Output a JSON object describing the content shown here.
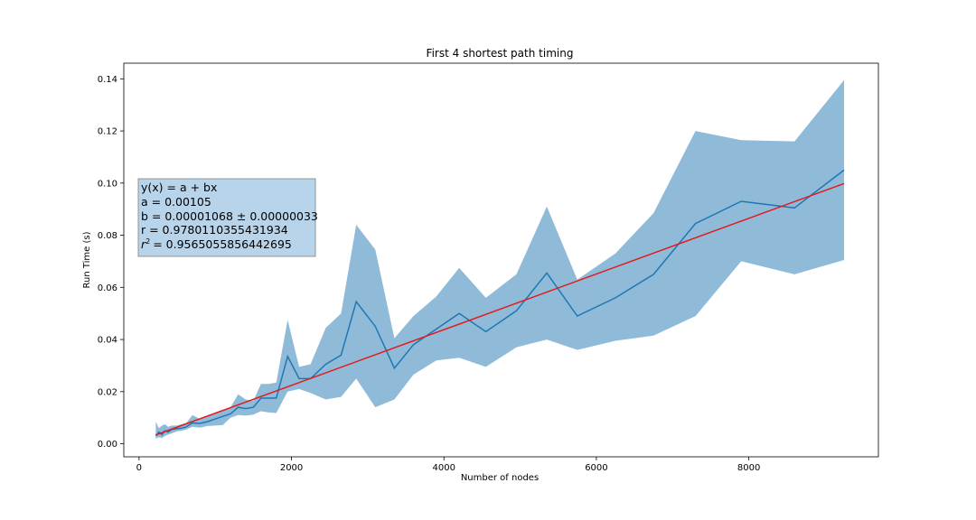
{
  "chart_data": {
    "type": "line",
    "title": "First 4 shortest path timing",
    "xlabel": "Number of nodes",
    "ylabel": "Run Time (s)",
    "xlim": [
      -200,
      9700
    ],
    "ylim": [
      -0.005,
      0.146
    ],
    "xticks": [
      0,
      2000,
      4000,
      6000,
      8000
    ],
    "xtick_labels": [
      "0",
      "2000",
      "4000",
      "6000",
      "8000"
    ],
    "yticks": [
      0.0,
      0.02,
      0.04,
      0.06,
      0.08,
      0.1,
      0.12,
      0.14
    ],
    "ytick_labels": [
      "0.00",
      "0.02",
      "0.04",
      "0.06",
      "0.08",
      "0.10",
      "0.12",
      "0.14"
    ],
    "grid": false,
    "colors": {
      "mean_line": "#1f77b4",
      "band": "#1f77b4",
      "fit_line": "#e31a1c",
      "annotation_bg": "#b8d4ea"
    },
    "series": [
      {
        "role": "mean",
        "x": [
          220,
          260,
          300,
          340,
          380,
          430,
          500,
          560,
          620,
          700,
          800,
          900,
          1000,
          1100,
          1200,
          1300,
          1400,
          1500,
          1600,
          1700,
          1800,
          1950,
          2100,
          2250,
          2450,
          2650,
          2850,
          3100,
          3350,
          3600,
          3900,
          4200,
          4550,
          4950,
          5350,
          5750,
          6250,
          6750,
          7300,
          7900,
          8600,
          9250
        ],
        "y": [
          0.003,
          0.0045,
          0.0035,
          0.005,
          0.0045,
          0.0055,
          0.0058,
          0.006,
          0.0065,
          0.008,
          0.0078,
          0.0085,
          0.0095,
          0.0105,
          0.0115,
          0.014,
          0.0135,
          0.014,
          0.0175,
          0.0175,
          0.0175,
          0.0335,
          0.025,
          0.025,
          0.0305,
          0.034,
          0.0545,
          0.045,
          0.029,
          0.038,
          0.044,
          0.05,
          0.043,
          0.051,
          0.0655,
          0.049,
          0.056,
          0.065,
          0.0845,
          0.093,
          0.0905,
          0.105
        ]
      },
      {
        "role": "band_upper",
        "x": [
          220,
          260,
          300,
          340,
          380,
          430,
          500,
          560,
          620,
          700,
          800,
          900,
          1000,
          1100,
          1200,
          1300,
          1400,
          1500,
          1600,
          1700,
          1800,
          1950,
          2100,
          2250,
          2450,
          2650,
          2850,
          3100,
          3350,
          3600,
          3900,
          4200,
          4550,
          4950,
          5350,
          5750,
          6250,
          6750,
          7300,
          7900,
          8600,
          9250
        ],
        "y": [
          0.0085,
          0.006,
          0.007,
          0.0075,
          0.0065,
          0.007,
          0.007,
          0.0075,
          0.008,
          0.011,
          0.0095,
          0.0105,
          0.012,
          0.013,
          0.014,
          0.019,
          0.017,
          0.0165,
          0.023,
          0.023,
          0.0235,
          0.0475,
          0.0295,
          0.0305,
          0.0445,
          0.05,
          0.084,
          0.0745,
          0.0405,
          0.049,
          0.0565,
          0.0675,
          0.056,
          0.065,
          0.091,
          0.063,
          0.073,
          0.0885,
          0.12,
          0.1165,
          0.116,
          0.1395
        ]
      },
      {
        "role": "band_lower",
        "x": [
          220,
          260,
          300,
          340,
          380,
          430,
          500,
          560,
          620,
          700,
          800,
          900,
          1000,
          1100,
          1200,
          1300,
          1400,
          1500,
          1600,
          1700,
          1800,
          1950,
          2100,
          2250,
          2450,
          2650,
          2850,
          3100,
          3350,
          3600,
          3900,
          4200,
          4550,
          4950,
          5350,
          5750,
          6250,
          6750,
          7300,
          7900,
          8600,
          9250
        ],
        "y": [
          0.002,
          0.0025,
          0.0022,
          0.003,
          0.0035,
          0.004,
          0.0048,
          0.005,
          0.0055,
          0.0065,
          0.0062,
          0.0068,
          0.007,
          0.0072,
          0.01,
          0.011,
          0.0108,
          0.0112,
          0.0125,
          0.012,
          0.0118,
          0.02,
          0.021,
          0.0195,
          0.017,
          0.018,
          0.025,
          0.014,
          0.017,
          0.0265,
          0.032,
          0.033,
          0.0295,
          0.037,
          0.04,
          0.036,
          0.0395,
          0.0415,
          0.049,
          0.07,
          0.065,
          0.0705
        ]
      }
    ],
    "fit": {
      "a": 0.00105,
      "b": 1.068e-05,
      "x_range": [
        220,
        9250
      ]
    },
    "annotation": {
      "lines": [
        "y(x) = a + bx",
        "a = 0.00105",
        "b = 0.00001068 ± 0.00000033",
        "r = 0.9780110355431934",
        "= 0.9565055856442695"
      ],
      "r2_symbol": "r",
      "r2_superscript": "2"
    }
  }
}
